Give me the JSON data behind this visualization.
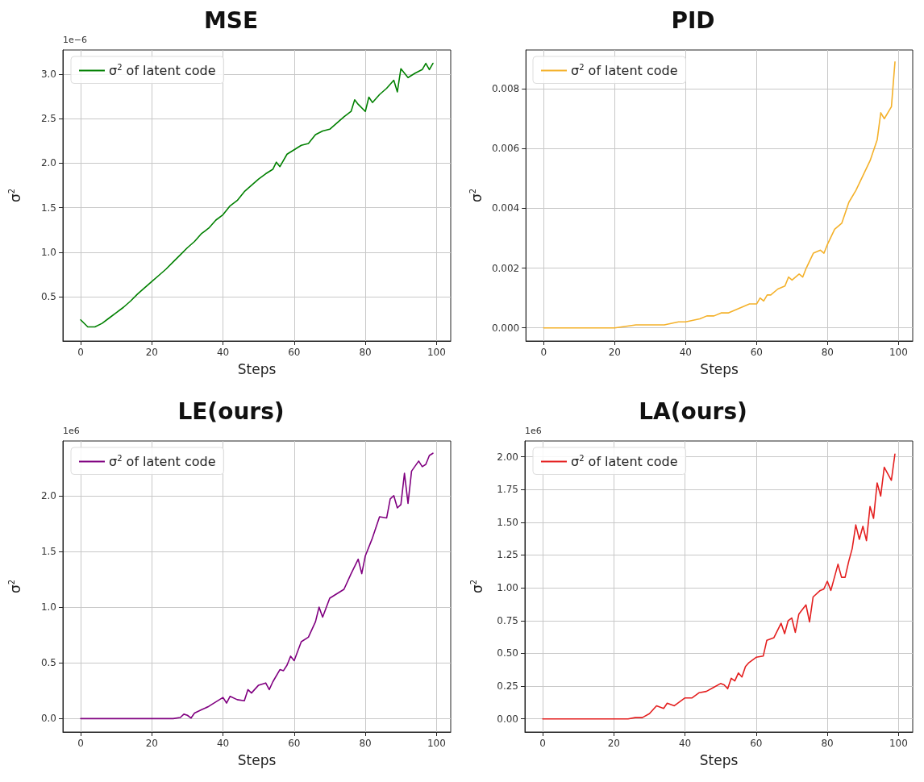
{
  "chart_data": [
    {
      "type": "line",
      "title": "MSE",
      "xlabel": "Steps",
      "ylabel": "σ$^{2}$",
      "annotations": [
        "1e−6"
      ],
      "legend": "top left",
      "grid": true,
      "xlim": [
        -5,
        104
      ],
      "xticks": [
        0,
        20,
        40,
        60,
        80,
        100
      ],
      "ylim": [
        0.002,
        3.27
      ],
      "yticks": [
        0.5,
        {
          "value": 1,
          "label": "1.0"
        },
        1.5,
        {
          "value": 2,
          "label": "2.0"
        },
        2.5,
        {
          "value": 3,
          "label": "3.0"
        }
      ],
      "series": [
        {
          "name": "σ$^{2}$ of latent code",
          "color": "#008000",
          "x": [
            0,
            2,
            4,
            6,
            8,
            10,
            12,
            14,
            16,
            18,
            20,
            22,
            24,
            26,
            28,
            30,
            32,
            34,
            36,
            38,
            40,
            42,
            44,
            46,
            48,
            50,
            52,
            54,
            55,
            56,
            58,
            60,
            62,
            64,
            66,
            68,
            70,
            72,
            74,
            76,
            77,
            78,
            80,
            81,
            82,
            84,
            86,
            88,
            89,
            90,
            92,
            94,
            96,
            97,
            98,
            99
          ],
          "values": [
            0.24,
            0.16,
            0.16,
            0.2,
            0.26,
            0.32,
            0.38,
            0.45,
            0.53,
            0.6,
            0.67,
            0.74,
            0.81,
            0.89,
            0.97,
            1.05,
            1.12,
            1.21,
            1.27,
            1.36,
            1.42,
            1.52,
            1.58,
            1.68,
            1.75,
            1.82,
            1.88,
            1.93,
            2.01,
            1.96,
            2.1,
            2.15,
            2.2,
            2.22,
            2.32,
            2.36,
            2.38,
            2.45,
            2.52,
            2.58,
            2.71,
            2.66,
            2.58,
            2.74,
            2.68,
            2.77,
            2.84,
            2.93,
            2.8,
            3.06,
            2.96,
            3.01,
            3.05,
            3.12,
            3.05,
            3.12
          ]
        }
      ]
    },
    {
      "type": "line",
      "title": "PID",
      "xlabel": "Steps",
      "ylabel": "σ$^{2}$",
      "legend": "top left",
      "grid": true,
      "xlim": [
        -5,
        104
      ],
      "xticks": [
        0,
        20,
        40,
        60,
        80,
        100
      ],
      "ylim": [
        -0.00044,
        0.0093
      ],
      "yticks": [
        {
          "value": 0,
          "label": "0.000"
        },
        0.002,
        0.004,
        0.006,
        0.008
      ],
      "series": [
        {
          "name": "σ$^{2}$ of latent code",
          "color": "#f4b12a",
          "x": [
            0,
            10,
            20,
            26,
            30,
            34,
            38,
            40,
            44,
            46,
            48,
            50,
            52,
            54,
            56,
            58,
            60,
            61,
            62,
            63,
            64,
            66,
            68,
            69,
            70,
            72,
            73,
            74,
            76,
            78,
            79,
            80,
            82,
            84,
            86,
            88,
            90,
            92,
            94,
            95,
            96,
            98,
            99
          ],
          "values": [
            0,
            0,
            0,
            0.0001,
            0.0001,
            0.0001,
            0.0002,
            0.0002,
            0.0003,
            0.0004,
            0.0004,
            0.0005,
            0.0005,
            0.0006,
            0.0007,
            0.0008,
            0.0008,
            0.001,
            0.0009,
            0.0011,
            0.0011,
            0.0013,
            0.0014,
            0.0017,
            0.0016,
            0.0018,
            0.0017,
            0.002,
            0.0025,
            0.0026,
            0.0025,
            0.0028,
            0.0033,
            0.0035,
            0.0042,
            0.0046,
            0.0051,
            0.0056,
            0.0063,
            0.0072,
            0.007,
            0.0074,
            0.0089
          ]
        }
      ]
    },
    {
      "type": "line",
      "title": "LE(ours)",
      "xlabel": "Steps",
      "ylabel": "σ$^{2}$",
      "annotations": [
        "1e6"
      ],
      "legend": "top left",
      "grid": true,
      "xlim": [
        -5,
        104
      ],
      "xticks": [
        0,
        20,
        40,
        60,
        80,
        100
      ],
      "ylim": [
        -0.12,
        2.49
      ],
      "yticks": [
        {
          "value": 0,
          "label": "0.0"
        },
        0.5,
        {
          "value": 1,
          "label": "1.0"
        },
        1.5,
        {
          "value": 2,
          "label": "2.0"
        }
      ],
      "series": [
        {
          "name": "σ$^{2}$ of latent code",
          "color": "#800080",
          "x": [
            0,
            10,
            20,
            26,
            28,
            29,
            30,
            31,
            32,
            34,
            36,
            38,
            40,
            41,
            42,
            44,
            46,
            47,
            48,
            50,
            52,
            53,
            54,
            56,
            57,
            58,
            59,
            60,
            62,
            64,
            66,
            67,
            68,
            70,
            72,
            74,
            76,
            78,
            79,
            80,
            82,
            84,
            86,
            87,
            88,
            89,
            90,
            91,
            92,
            93,
            95,
            96,
            97,
            98,
            99
          ],
          "values": [
            0,
            0,
            0,
            0,
            0.01,
            0.04,
            0.03,
            0.005,
            0.05,
            0.08,
            0.11,
            0.15,
            0.19,
            0.14,
            0.2,
            0.17,
            0.16,
            0.26,
            0.23,
            0.3,
            0.32,
            0.26,
            0.33,
            0.44,
            0.43,
            0.48,
            0.56,
            0.52,
            0.69,
            0.73,
            0.87,
            1.0,
            0.91,
            1.08,
            1.12,
            1.16,
            1.3,
            1.43,
            1.3,
            1.46,
            1.62,
            1.81,
            1.8,
            1.97,
            2.0,
            1.89,
            1.92,
            2.2,
            1.93,
            2.22,
            2.31,
            2.26,
            2.28,
            2.36,
            2.38
          ]
        }
      ]
    },
    {
      "type": "line",
      "title": "LA(ours)",
      "xlabel": "Steps",
      "ylabel": "σ$^{2}$",
      "annotations": [
        "1e6"
      ],
      "legend": "top left",
      "grid": true,
      "xlim": [
        -5,
        104
      ],
      "xticks": [
        0,
        20,
        40,
        60,
        80,
        100
      ],
      "ylim": [
        -0.1,
        2.12
      ],
      "yticks": [
        {
          "value": 0,
          "label": "0.00"
        },
        0.25,
        {
          "value": 0.5,
          "label": "0.50"
        },
        0.75,
        {
          "value": 1,
          "label": "1.00"
        },
        1.25,
        {
          "value": 1.5,
          "label": "1.50"
        },
        1.75,
        {
          "value": 2,
          "label": "2.00"
        }
      ],
      "series": [
        {
          "name": "σ$^{2}$ of latent code",
          "color": "#e41f1f",
          "x": [
            0,
            10,
            20,
            24,
            26,
            28,
            30,
            32,
            34,
            35,
            37,
            38,
            40,
            42,
            44,
            46,
            48,
            50,
            51,
            52,
            53,
            54,
            55,
            56,
            57,
            58,
            60,
            62,
            63,
            65,
            67,
            68,
            69,
            70,
            71,
            72,
            74,
            75,
            76,
            78,
            79,
            80,
            81,
            83,
            84,
            85,
            86,
            87,
            88,
            89,
            90,
            91,
            92,
            93,
            94,
            95,
            96,
            98,
            99
          ],
          "values": [
            0,
            0,
            0,
            0,
            0.01,
            0.01,
            0.04,
            0.1,
            0.08,
            0.12,
            0.1,
            0.12,
            0.16,
            0.16,
            0.2,
            0.21,
            0.24,
            0.27,
            0.26,
            0.23,
            0.31,
            0.29,
            0.35,
            0.32,
            0.4,
            0.43,
            0.47,
            0.48,
            0.6,
            0.62,
            0.73,
            0.65,
            0.75,
            0.77,
            0.66,
            0.8,
            0.87,
            0.74,
            0.93,
            0.98,
            0.99,
            1.05,
            0.98,
            1.18,
            1.08,
            1.08,
            1.2,
            1.3,
            1.48,
            1.37,
            1.47,
            1.36,
            1.62,
            1.53,
            1.8,
            1.7,
            1.92,
            1.82,
            2.02
          ]
        }
      ]
    }
  ]
}
